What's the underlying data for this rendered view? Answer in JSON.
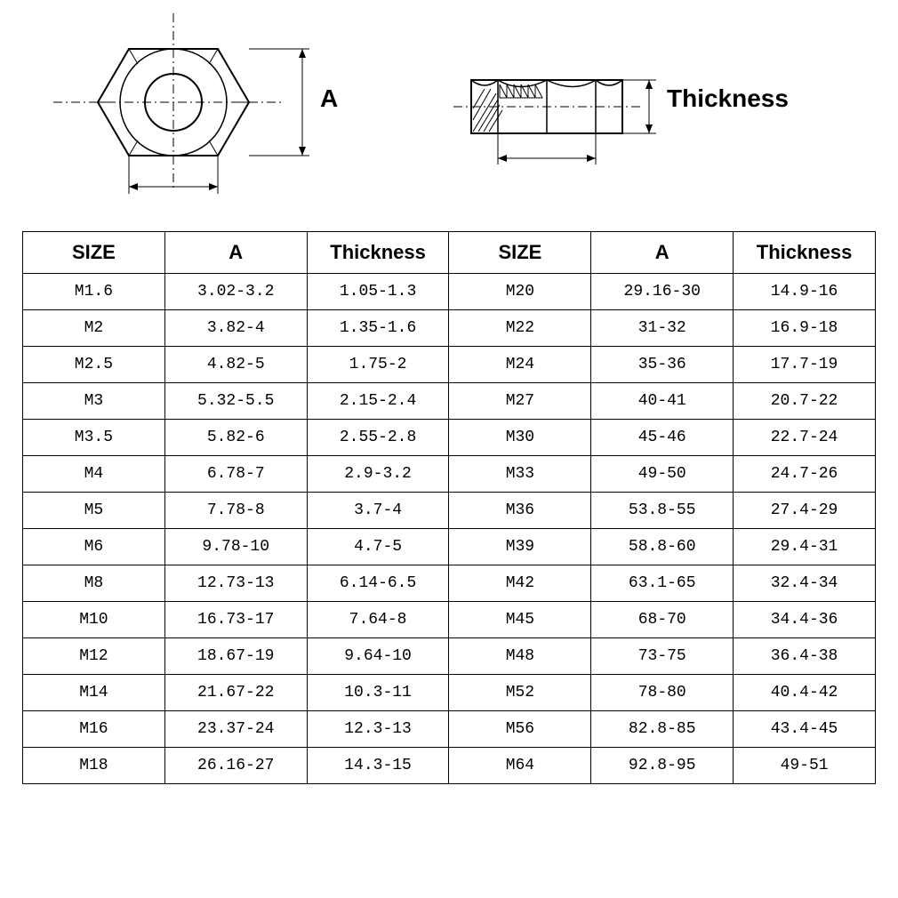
{
  "diagram": {
    "label_a": "A",
    "label_thickness": "Thickness",
    "stroke_color": "#000000",
    "fill_color": "#ffffff",
    "dash_pattern": "8 4 2 4"
  },
  "table": {
    "columns": [
      "SIZE",
      "A",
      "Thickness",
      "SIZE",
      "A",
      "Thickness"
    ],
    "col_widths": [
      "16.6%",
      "16.6%",
      "16.6%",
      "16.6%",
      "16.6%",
      "16.6%"
    ],
    "header_fontsize": 22,
    "cell_fontsize": 18,
    "border_color": "#000000",
    "rows": [
      [
        "M1.6",
        "3.02-3.2",
        "1.05-1.3",
        "M20",
        "29.16-30",
        "14.9-16"
      ],
      [
        "M2",
        "3.82-4",
        "1.35-1.6",
        "M22",
        "31-32",
        "16.9-18"
      ],
      [
        "M2.5",
        "4.82-5",
        "1.75-2",
        "M24",
        "35-36",
        "17.7-19"
      ],
      [
        "M3",
        "5.32-5.5",
        "2.15-2.4",
        "M27",
        "40-41",
        "20.7-22"
      ],
      [
        "M3.5",
        "5.82-6",
        "2.55-2.8",
        "M30",
        "45-46",
        "22.7-24"
      ],
      [
        "M4",
        "6.78-7",
        "2.9-3.2",
        "M33",
        "49-50",
        "24.7-26"
      ],
      [
        "M5",
        "7.78-8",
        "3.7-4",
        "M36",
        "53.8-55",
        "27.4-29"
      ],
      [
        "M6",
        "9.78-10",
        "4.7-5",
        "M39",
        "58.8-60",
        "29.4-31"
      ],
      [
        "M8",
        "12.73-13",
        "6.14-6.5",
        "M42",
        "63.1-65",
        "32.4-34"
      ],
      [
        "M10",
        "16.73-17",
        "7.64-8",
        "M45",
        "68-70",
        "34.4-36"
      ],
      [
        "M12",
        "18.67-19",
        "9.64-10",
        "M48",
        "73-75",
        "36.4-38"
      ],
      [
        "M14",
        "21.67-22",
        "10.3-11",
        "M52",
        "78-80",
        "40.4-42"
      ],
      [
        "M16",
        "23.37-24",
        "12.3-13",
        "M56",
        "82.8-85",
        "43.4-45"
      ],
      [
        "M18",
        "26.16-27",
        "14.3-15",
        "M64",
        "92.8-95",
        "49-51"
      ]
    ]
  }
}
